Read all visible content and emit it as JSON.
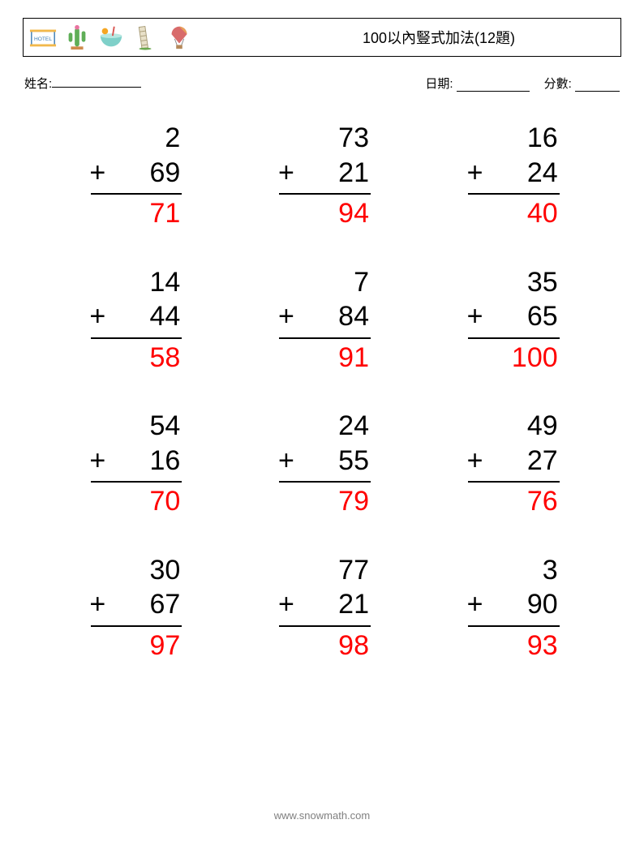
{
  "header": {
    "title": "100以內豎式加法(12題)",
    "icons": [
      "hotel",
      "cactus",
      "drink-bowl",
      "leaning-tower",
      "balloon"
    ]
  },
  "info": {
    "name_label": "姓名:",
    "date_label": "日期:",
    "score_label": "分數:"
  },
  "style": {
    "background_color": "#ffffff",
    "text_color": "#000000",
    "answer_color": "#ff0000",
    "rule_color": "#000000",
    "footer_color": "#808080",
    "problem_fontsize": 34,
    "title_fontsize": 18,
    "info_fontsize": 15,
    "footer_fontsize": 13,
    "font_family": "Arial",
    "grid_columns": 3,
    "grid_rows": 4
  },
  "problems": [
    {
      "a": "2",
      "op": "+",
      "b": "69",
      "ans": "71"
    },
    {
      "a": "73",
      "op": "+",
      "b": "21",
      "ans": "94"
    },
    {
      "a": "16",
      "op": "+",
      "b": "24",
      "ans": "40"
    },
    {
      "a": "14",
      "op": "+",
      "b": "44",
      "ans": "58"
    },
    {
      "a": "7",
      "op": "+",
      "b": "84",
      "ans": "91"
    },
    {
      "a": "35",
      "op": "+",
      "b": "65",
      "ans": "100"
    },
    {
      "a": "54",
      "op": "+",
      "b": "16",
      "ans": "70"
    },
    {
      "a": "24",
      "op": "+",
      "b": "55",
      "ans": "79"
    },
    {
      "a": "49",
      "op": "+",
      "b": "27",
      "ans": "76"
    },
    {
      "a": "30",
      "op": "+",
      "b": "67",
      "ans": "97"
    },
    {
      "a": "77",
      "op": "+",
      "b": "21",
      "ans": "98"
    },
    {
      "a": "3",
      "op": "+",
      "b": "90",
      "ans": "93"
    }
  ],
  "footer": {
    "url": "www.snowmath.com"
  }
}
